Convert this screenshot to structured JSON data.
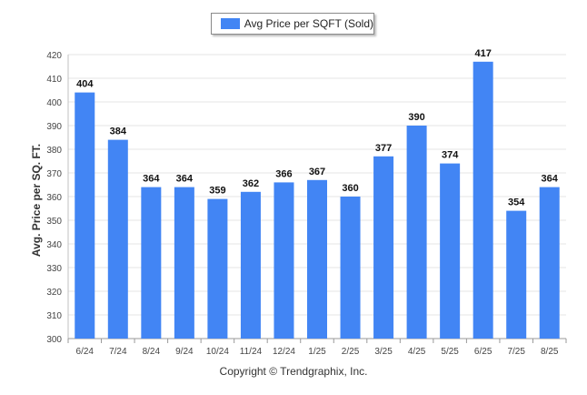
{
  "chart_data": {
    "type": "bar",
    "categories": [
      "6/24",
      "7/24",
      "8/24",
      "9/24",
      "10/24",
      "11/24",
      "12/24",
      "1/25",
      "2/25",
      "3/25",
      "4/25",
      "5/25",
      "6/25",
      "7/25",
      "8/25"
    ],
    "series": [
      {
        "name": "Avg Price per SQFT (Sold)",
        "values": [
          404,
          384,
          364,
          364,
          359,
          362,
          366,
          367,
          360,
          377,
          390,
          374,
          417,
          354,
          364
        ]
      }
    ],
    "ylabel": "Avg. Price per SQ. FT.",
    "xlabel": "",
    "ylim": [
      300,
      420
    ],
    "yticks": [
      300,
      310,
      320,
      330,
      340,
      350,
      360,
      370,
      380,
      390,
      400,
      410,
      420
    ],
    "grid": true,
    "legend_position": "top-center",
    "bar_color": "#4285f4"
  },
  "footer": {
    "copyright": "Copyright © Trendgraphix, Inc."
  }
}
